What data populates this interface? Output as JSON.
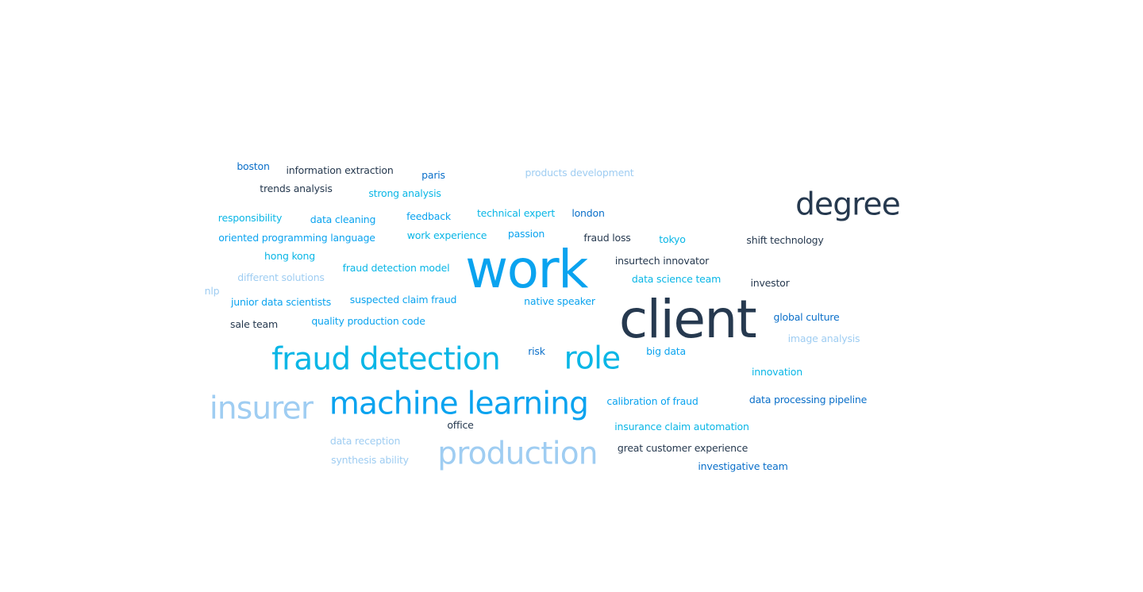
{
  "words": [
    {
      "text": "boston",
      "color": "#0a6fc9"
    },
    {
      "text": "information extraction",
      "color": "#26394f"
    },
    {
      "text": "paris",
      "color": "#0a6fc9"
    },
    {
      "text": "products development",
      "color": "#9fcdf2"
    },
    {
      "text": "trends analysis",
      "color": "#26394f"
    },
    {
      "text": "strong analysis",
      "color": "#09b6e6"
    },
    {
      "text": "degree",
      "color": "#26394f"
    },
    {
      "text": "responsibility",
      "color": "#09b6e6"
    },
    {
      "text": "data cleaning",
      "color": "#0aa3ef"
    },
    {
      "text": "feedback",
      "color": "#0aa3ef"
    },
    {
      "text": "technical expert",
      "color": "#09b6e6"
    },
    {
      "text": "london",
      "color": "#0a6fc9"
    },
    {
      "text": "oriented programming language",
      "color": "#0aa3ef"
    },
    {
      "text": "work experience",
      "color": "#09b6e6"
    },
    {
      "text": "passion",
      "color": "#0aa3ef"
    },
    {
      "text": "fraud loss",
      "color": "#26394f"
    },
    {
      "text": "tokyo",
      "color": "#09b6e6"
    },
    {
      "text": "shift technology",
      "color": "#26394f"
    },
    {
      "text": "hong kong",
      "color": "#09b6e6"
    },
    {
      "text": "work",
      "color": "#0aa3ef"
    },
    {
      "text": "insurtech innovator",
      "color": "#26394f"
    },
    {
      "text": "fraud detection model",
      "color": "#09b6e6"
    },
    {
      "text": "different solutions",
      "color": "#9fcdf2"
    },
    {
      "text": "data science team",
      "color": "#09b6e6"
    },
    {
      "text": "investor",
      "color": "#26394f"
    },
    {
      "text": "nlp",
      "color": "#9fcdf2"
    },
    {
      "text": "junior data scientists",
      "color": "#0aa3ef"
    },
    {
      "text": "suspected claim fraud",
      "color": "#0aa3ef"
    },
    {
      "text": "native speaker",
      "color": "#0aa3ef"
    },
    {
      "text": "client",
      "color": "#26394f"
    },
    {
      "text": "sale team",
      "color": "#26394f"
    },
    {
      "text": "quality production code",
      "color": "#0aa3ef"
    },
    {
      "text": "global culture",
      "color": "#0a6fc9"
    },
    {
      "text": "image analysis",
      "color": "#9fcdf2"
    },
    {
      "text": "fraud detection",
      "color": "#09b6e6"
    },
    {
      "text": "risk",
      "color": "#0a6fc9"
    },
    {
      "text": "role",
      "color": "#09b6e6"
    },
    {
      "text": "big data",
      "color": "#0aa3ef"
    },
    {
      "text": "innovation",
      "color": "#09b6e6"
    },
    {
      "text": "insurer",
      "color": "#9fcdf2"
    },
    {
      "text": "machine learning",
      "color": "#0aa3ef"
    },
    {
      "text": "calibration of fraud",
      "color": "#0aa3ef"
    },
    {
      "text": "data processing pipeline",
      "color": "#0a6fc9"
    },
    {
      "text": "office",
      "color": "#26394f"
    },
    {
      "text": "insurance claim automation",
      "color": "#09b6e6"
    },
    {
      "text": "data reception",
      "color": "#9fcdf2"
    },
    {
      "text": "production",
      "color": "#9fcdf2"
    },
    {
      "text": "great customer experience",
      "color": "#26394f"
    },
    {
      "text": "synthesis ability",
      "color": "#9fcdf2"
    },
    {
      "text": "investigative team",
      "color": "#0a6fc9"
    }
  ]
}
